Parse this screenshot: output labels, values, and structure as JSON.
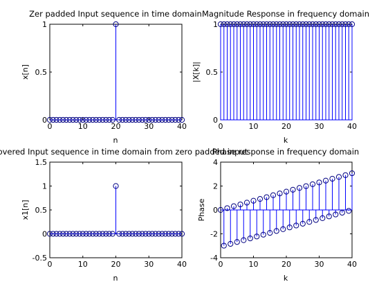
{
  "figure": {
    "background": "#ffffff"
  },
  "colors": {
    "stem": "#0000ff",
    "marker": "#000080",
    "axes": "#000000"
  },
  "chart_data": [
    {
      "type": "stem",
      "title": "Zer padded Input sequence in time domain",
      "xlabel": "n",
      "ylabel": "x[n]",
      "xlim": [
        0,
        40
      ],
      "ylim": [
        0,
        1
      ],
      "xticks": [
        0,
        10,
        20,
        30,
        40
      ],
      "yticks": [
        0,
        0.5,
        1
      ],
      "xtick_labels": [
        "0",
        "10",
        "20",
        "30",
        "40"
      ],
      "ytick_labels": [
        "0",
        "0.5",
        "1"
      ],
      "baseline": 0,
      "x": [
        0,
        1,
        2,
        3,
        4,
        5,
        6,
        7,
        8,
        9,
        10,
        11,
        12,
        13,
        14,
        15,
        16,
        17,
        18,
        19,
        20,
        21,
        22,
        23,
        24,
        25,
        26,
        27,
        28,
        29,
        30,
        31,
        32,
        33,
        34,
        35,
        36,
        37,
        38,
        39,
        40
      ],
      "y": [
        0,
        0,
        0,
        0,
        0,
        0,
        0,
        0,
        0,
        0,
        0,
        0,
        0,
        0,
        0,
        0,
        0,
        0,
        0,
        0,
        1,
        0,
        0,
        0,
        0,
        0,
        0,
        0,
        0,
        0,
        0,
        0,
        0,
        0,
        0,
        0,
        0,
        0,
        0,
        0,
        0
      ]
    },
    {
      "type": "stem",
      "title": "Magnitude Response in frequency domain",
      "xlabel": "k",
      "ylabel": "|X[k]|",
      "xlim": [
        0,
        40
      ],
      "ylim": [
        0,
        1
      ],
      "xticks": [
        0,
        10,
        20,
        30,
        40
      ],
      "yticks": [
        0,
        0.5,
        1
      ],
      "xtick_labels": [
        "0",
        "10",
        "20",
        "30",
        "40"
      ],
      "ytick_labels": [
        "0",
        "0.5",
        "1"
      ],
      "baseline": 0,
      "x": [
        0,
        1,
        2,
        3,
        4,
        5,
        6,
        7,
        8,
        9,
        10,
        11,
        12,
        13,
        14,
        15,
        16,
        17,
        18,
        19,
        20,
        21,
        22,
        23,
        24,
        25,
        26,
        27,
        28,
        29,
        30,
        31,
        32,
        33,
        34,
        35,
        36,
        37,
        38,
        39,
        40
      ],
      "y": [
        1,
        1,
        1,
        1,
        1,
        1,
        1,
        1,
        1,
        1,
        1,
        1,
        1,
        1,
        1,
        1,
        1,
        1,
        1,
        1,
        1,
        1,
        1,
        1,
        1,
        1,
        1,
        1,
        1,
        1,
        1,
        1,
        1,
        1,
        1,
        1,
        1,
        1,
        1,
        1,
        1
      ]
    },
    {
      "type": "stem",
      "title": "Recovered Input sequence in time domain from zero padded input",
      "xlabel": "n",
      "ylabel": "x1[n]",
      "xlim": [
        0,
        40
      ],
      "ylim": [
        -0.5,
        1.5
      ],
      "xticks": [
        0,
        10,
        20,
        30,
        40
      ],
      "yticks": [
        -0.5,
        0,
        0.5,
        1,
        1.5
      ],
      "xtick_labels": [
        "0",
        "10",
        "20",
        "30",
        "40"
      ],
      "ytick_labels": [
        "-0.5",
        "0",
        "0.5",
        "1",
        "1.5"
      ],
      "baseline": 0,
      "x": [
        0,
        1,
        2,
        3,
        4,
        5,
        6,
        7,
        8,
        9,
        10,
        11,
        12,
        13,
        14,
        15,
        16,
        17,
        18,
        19,
        20,
        21,
        22,
        23,
        24,
        25,
        26,
        27,
        28,
        29,
        30,
        31,
        32,
        33,
        34,
        35,
        36,
        37,
        38,
        39,
        40
      ],
      "y": [
        0,
        0,
        0,
        0,
        0,
        0,
        0,
        0,
        0,
        0,
        0,
        0,
        0,
        0,
        0,
        0,
        0,
        0,
        0,
        0,
        1,
        0,
        0,
        0,
        0,
        0,
        0,
        0,
        0,
        0,
        0,
        0,
        0,
        0,
        0,
        0,
        0,
        0,
        0,
        0,
        0
      ]
    },
    {
      "type": "stem",
      "title": "Phase response in frequency domain",
      "xlabel": "k",
      "ylabel": "Phase",
      "xlim": [
        0,
        40
      ],
      "ylim": [
        -4,
        4
      ],
      "xticks": [
        0,
        10,
        20,
        30,
        40
      ],
      "yticks": [
        -4,
        -2,
        0,
        2,
        4
      ],
      "xtick_labels": [
        "0",
        "10",
        "20",
        "30",
        "40"
      ],
      "ytick_labels": [
        "-4",
        "-2",
        "0",
        "2",
        "4"
      ],
      "baseline": 0,
      "x": [
        0,
        1,
        2,
        3,
        4,
        5,
        6,
        7,
        8,
        9,
        10,
        11,
        12,
        13,
        14,
        15,
        16,
        17,
        18,
        19,
        20,
        21,
        22,
        23,
        24,
        25,
        26,
        27,
        28,
        29,
        30,
        31,
        32,
        33,
        34,
        35,
        36,
        37,
        38,
        39,
        40
      ],
      "y": [
        0,
        -2.99,
        0.15,
        -2.84,
        0.31,
        -2.68,
        0.46,
        -2.53,
        0.61,
        -2.38,
        0.77,
        -2.22,
        0.92,
        -2.07,
        1.07,
        -1.92,
        1.23,
        -1.76,
        1.38,
        -1.61,
        1.53,
        -1.46,
        1.69,
        -1.3,
        1.84,
        -1.15,
        1.99,
        -1.0,
        2.15,
        -0.84,
        2.3,
        -0.69,
        2.45,
        -0.54,
        2.61,
        -0.38,
        2.76,
        -0.23,
        2.91,
        -0.08,
        3.07
      ]
    }
  ]
}
